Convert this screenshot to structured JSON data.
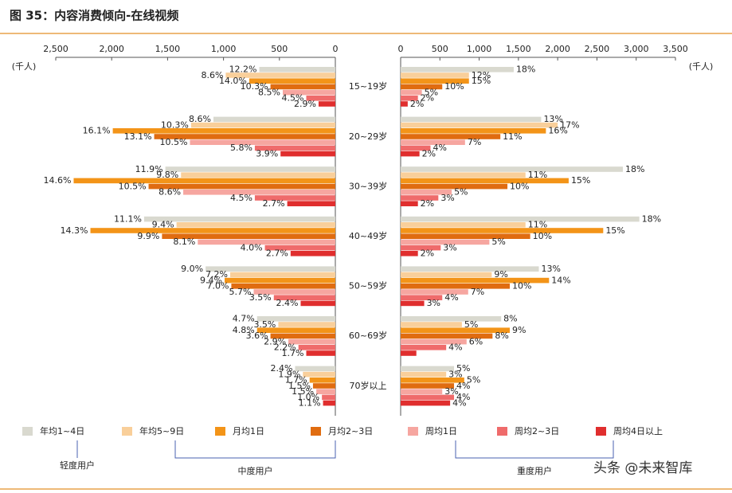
{
  "chart_data": {
    "type": "butterfly",
    "title": "图 35：内容消费倾向-在线视频",
    "unit": "(千人)",
    "categories": [
      "15~19岁",
      "20~29岁",
      "30~39岁",
      "40~49岁",
      "50~59岁",
      "60~69岁",
      "70岁以上"
    ],
    "xlim_left": [
      2500,
      0
    ],
    "xticks_left": [
      {
        "value": 2500,
        "label": "2,500"
      },
      {
        "value": 2000,
        "label": "2,000"
      },
      {
        "value": 1500,
        "label": "1,500"
      },
      {
        "value": 1000,
        "label": "1,000"
      },
      500,
      0
    ],
    "xlim_right": [
      0,
      3500
    ],
    "xticks_right": [
      0,
      500,
      {
        "value": 1000,
        "label": "1,000"
      },
      {
        "value": 1500,
        "label": "1,500"
      },
      {
        "value": 2000,
        "label": "2,000"
      },
      {
        "value": 2500,
        "label": "2,500"
      },
      {
        "value": 3000,
        "label": "3,000"
      },
      {
        "value": 3500,
        "label": "3,500"
      }
    ],
    "series": [
      {
        "name": "年均1~4日",
        "color": "#d9d9cf",
        "left_values": [
          680,
          1090,
          1520,
          1710,
          1160,
          700,
          360
        ],
        "left_labels": [
          "12.2%",
          "8.6%",
          "11.9%",
          "11.1%",
          "9.0%",
          "4.7%",
          "2.4%"
        ],
        "right_values": [
          1440,
          1790,
          2830,
          3040,
          1760,
          1280,
          680
        ],
        "right_labels": [
          "18%",
          "13%",
          "18%",
          "18%",
          "13%",
          "8%",
          "5%"
        ]
      },
      {
        "name": "年均5~9日",
        "color": "#f9cf9a",
        "left_values": [
          980,
          1290,
          1380,
          1420,
          940,
          510,
          290
        ],
        "left_labels": [
          "8.6%",
          "10.3%",
          "9.8%",
          "9.4%",
          "7.2%",
          "3.5%",
          "1.9%"
        ],
        "right_values": [
          870,
          2000,
          1590,
          1590,
          1160,
          780,
          580
        ],
        "right_labels": [
          "12%",
          "17%",
          "11%",
          "11%",
          "9%",
          "5%",
          "3%"
        ]
      },
      {
        "name": "月均1日",
        "color": "#f39418",
        "left_values": [
          770,
          1990,
          2340,
          2190,
          990,
          700,
          230
        ],
        "left_labels": [
          "14.0%",
          "16.1%",
          "14.6%",
          "14.3%",
          "9.4%",
          "4.8%",
          "1.7%"
        ],
        "right_values": [
          870,
          1850,
          2140,
          2580,
          1890,
          1390,
          810
        ],
        "right_labels": [
          "15%",
          "16%",
          "15%",
          "15%",
          "14%",
          "9%",
          "5%"
        ]
      },
      {
        "name": "月均2~3日",
        "color": "#e06c10",
        "left_values": [
          580,
          1620,
          1670,
          1550,
          930,
          580,
          200
        ],
        "left_labels": [
          "10.3%",
          "13.1%",
          "10.5%",
          "9.9%",
          "7.0%",
          "3.6%",
          "1.5%"
        ],
        "right_values": [
          530,
          1270,
          1360,
          1650,
          1390,
          1170,
          680
        ],
        "right_labels": [
          "10%",
          "11%",
          "10%",
          "10%",
          "10%",
          "8%",
          "4%"
        ]
      },
      {
        "name": "周均1日",
        "color": "#f6a6a0",
        "left_values": [
          470,
          1300,
          1360,
          1230,
          730,
          420,
          170
        ],
        "left_labels": [
          "8.5%",
          "10.5%",
          "8.6%",
          "8.1%",
          "5.7%",
          "2.9%",
          "1.5%"
        ],
        "right_values": [
          270,
          820,
          650,
          1130,
          860,
          840,
          530
        ],
        "right_labels": [
          "5%",
          "7%",
          "5%",
          "5%",
          "7%",
          "6%",
          "3%"
        ]
      },
      {
        "name": "周均2~3日",
        "color": "#ef6b6b",
        "left_values": [
          260,
          720,
          720,
          630,
          550,
          330,
          120
        ],
        "left_labels": [
          "4.5%",
          "5.8%",
          "4.5%",
          "4.0%",
          "3.5%",
          "2.2%",
          "1.0%"
        ],
        "right_values": [
          220,
          380,
          480,
          510,
          530,
          580,
          680
        ],
        "right_labels": [
          "2%",
          "4%",
          "3%",
          "3%",
          "4%",
          "4%",
          "4%"
        ]
      },
      {
        "name": "周均4日以上",
        "color": "#e02e2e",
        "left_values": [
          150,
          490,
          430,
          400,
          310,
          260,
          110
        ],
        "left_labels": [
          "2.9%",
          "3.9%",
          "2.7%",
          "2.7%",
          "2.4%",
          "1.7%",
          "1.1%"
        ],
        "right_values": [
          90,
          240,
          220,
          220,
          300,
          200,
          630
        ],
        "right_labels": [
          "2%",
          "2%",
          "2%",
          "2%",
          "3%",
          null,
          "4%"
        ]
      }
    ],
    "groups": [
      "轻度用户",
      "中度用户",
      "重度用户"
    ],
    "watermark": "头条 @未来智库"
  }
}
